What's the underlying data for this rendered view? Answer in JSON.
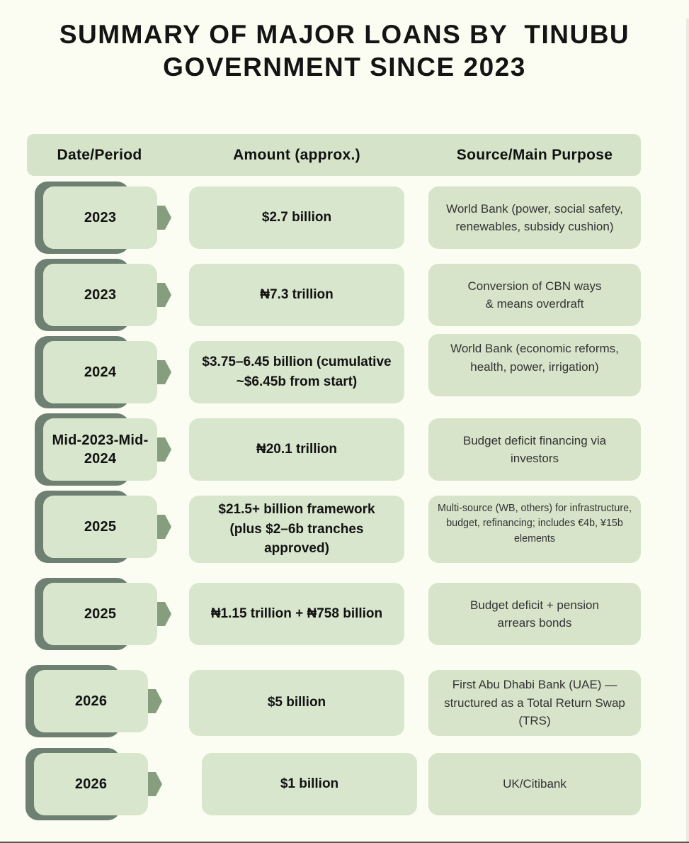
{
  "header": {
    "title_lines": [
      "SUMMARY OF MAJOR LOANS BY  TINUBU",
      "GOVERNMENT SINCE 2023"
    ]
  },
  "chart_data": {
    "type": "table",
    "title": "Summary of major loans by Tinubu government since 2023",
    "columns": [
      "Date/Period",
      "Amount (approx.)",
      "Source/Main Purpose"
    ],
    "rows": [
      {
        "period": "2023",
        "amount": "$2.7 billion",
        "source": "World Bank (power, social safety,\nrenewables, subsidy cushion)"
      },
      {
        "period": "2023",
        "amount": "₦7.3 trillion",
        "source": "Conversion of CBN ways\n& means overdraft"
      },
      {
        "period": "2024",
        "amount": "$3.75–6.45 billion (cumulative\n~$6.45b from start)",
        "source": "World Bank (economic reforms,\nhealth, power, irrigation)"
      },
      {
        "period": "Mid-2023-Mid-\n2024",
        "amount": "₦20.1 trillion",
        "source": "Budget deficit financing via\ninvestors"
      },
      {
        "period": "2025",
        "amount": "$21.5+ billion framework\n(plus $2–6b tranches\napproved)",
        "source": "Multi-source (WB, others) for infrastructure,\nbudget, refinancing; includes €4b, ¥15b\nelements"
      },
      {
        "period": "2025",
        "amount": "₦1.15 trillion + ₦758 billion",
        "source": "Budget deficit + pension\narrears bonds"
      },
      {
        "period": "2026",
        "amount": "$5 billion",
        "source": "First Abu Dhabi Bank (UAE) —\nstructured as a Total Return Swap\n(TRS)"
      },
      {
        "period": "2026",
        "amount": "$1 billion",
        "source": "UK/Citibank"
      }
    ]
  },
  "icons": {
    "row_arrow": "right-arrow"
  },
  "colors": {
    "background": "#fbfdf2",
    "cell_green": "#d9e6ce",
    "header_green": "#d5e3c9",
    "source_cell_green": "#d7e4ca",
    "badge_shadow_green": "#6e8071",
    "arrow_green": "#879e7e",
    "title_text": "#141414",
    "body_text": "#333333"
  }
}
